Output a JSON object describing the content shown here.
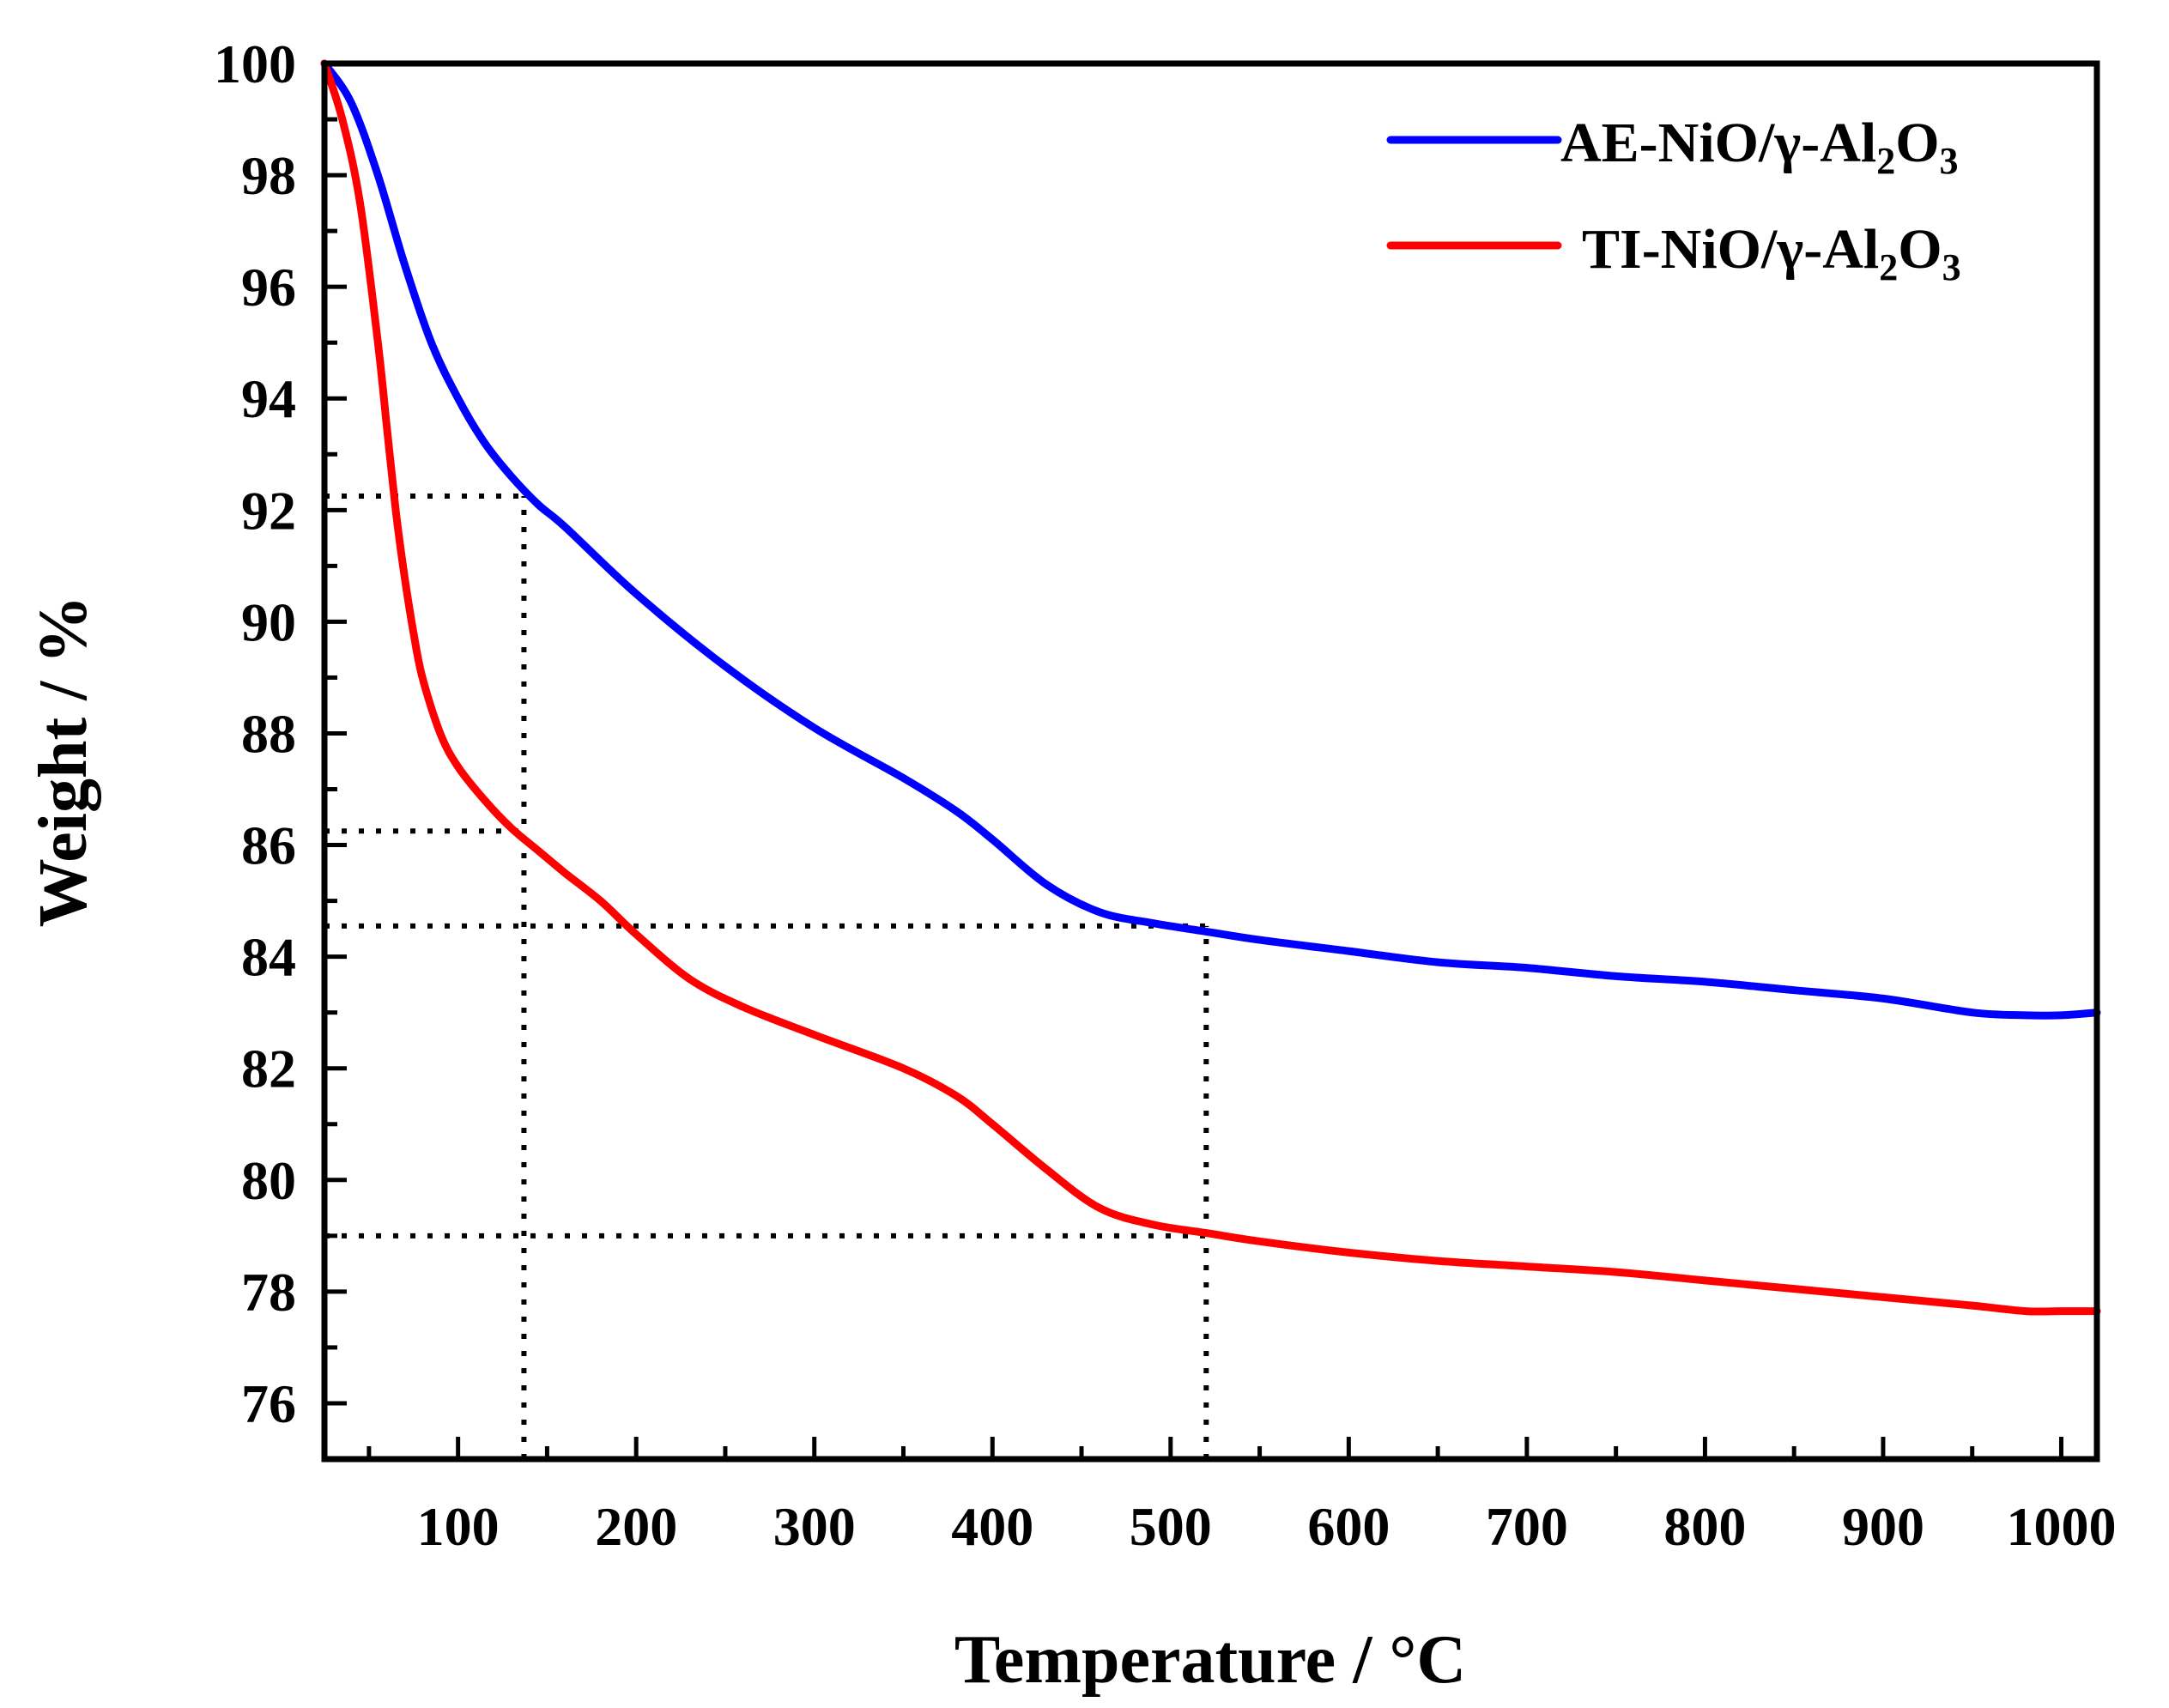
{
  "chart_data": {
    "type": "line",
    "title": "",
    "xlabel": "Temperature / °C",
    "ylabel": "Weight / %",
    "xlim": [
      25,
      1020
    ],
    "ylim": [
      75,
      100
    ],
    "xticks": [
      100,
      200,
      300,
      400,
      500,
      600,
      700,
      800,
      900,
      1000
    ],
    "yticks": [
      76,
      78,
      80,
      82,
      84,
      86,
      88,
      90,
      92,
      94,
      96,
      98,
      100
    ],
    "legend_position": "top-right",
    "series": [
      {
        "name": "AE-NiO/γ-Al₂O₃",
        "name_parts": [
          "AE-NiO/γ-Al",
          "2",
          "O",
          "3"
        ],
        "color": "#0000ff",
        "x": [
          25,
          40,
          55,
          70,
          85,
          100,
          115,
          130,
          145,
          160,
          200,
          250,
          300,
          350,
          380,
          400,
          430,
          460,
          490,
          520,
          550,
          600,
          650,
          700,
          750,
          800,
          850,
          900,
          950,
          980,
          1000,
          1020
        ],
        "y": [
          100,
          99.3,
          98,
          96.4,
          95,
          94,
          93.2,
          92.6,
          92.1,
          91.7,
          90.5,
          89.2,
          88.1,
          87.2,
          86.6,
          86.1,
          85.3,
          84.8,
          84.6,
          84.45,
          84.3,
          84.1,
          83.9,
          83.8,
          83.65,
          83.55,
          83.4,
          83.25,
          83.0,
          82.95,
          82.95,
          83.0
        ]
      },
      {
        "name": "TI-NiO/γ-Al₂O₃",
        "name_parts": [
          "TI-NiO/γ-Al",
          "2",
          "O",
          "3"
        ],
        "color": "#ff0000",
        "x": [
          25,
          35,
          45,
          55,
          60,
          65,
          70,
          75,
          80,
          90,
          100,
          115,
          130,
          145,
          160,
          180,
          200,
          230,
          260,
          300,
          350,
          380,
          400,
          430,
          460,
          490,
          520,
          550,
          600,
          650,
          700,
          750,
          800,
          850,
          900,
          950,
          980,
          1000,
          1020
        ],
        "y": [
          100,
          99,
          97.5,
          95,
          93.5,
          92,
          90.8,
          89.8,
          89,
          88,
          87.4,
          86.8,
          86.3,
          85.9,
          85.5,
          85.0,
          84.4,
          83.6,
          83.1,
          82.6,
          82.0,
          81.5,
          81.0,
          80.2,
          79.5,
          79.2,
          79.05,
          78.9,
          78.7,
          78.55,
          78.45,
          78.35,
          78.2,
          78.05,
          77.9,
          77.75,
          77.65,
          77.65,
          77.65
        ]
      }
    ],
    "reference_lines": [
      {
        "kind": "horizontal",
        "y": 92.25,
        "x_from": 25,
        "x_to": 137
      },
      {
        "kind": "horizontal",
        "y": 86.25,
        "x_from": 25,
        "x_to": 137
      },
      {
        "kind": "horizontal",
        "y": 84.55,
        "x_from": 25,
        "x_to": 520
      },
      {
        "kind": "horizontal",
        "y": 79.0,
        "x_from": 25,
        "x_to": 520
      },
      {
        "kind": "vertical",
        "x": 137,
        "y_from": 75,
        "y_to": 92.25
      },
      {
        "kind": "vertical",
        "x": 520,
        "y_from": 75,
        "y_to": 84.55
      }
    ]
  }
}
